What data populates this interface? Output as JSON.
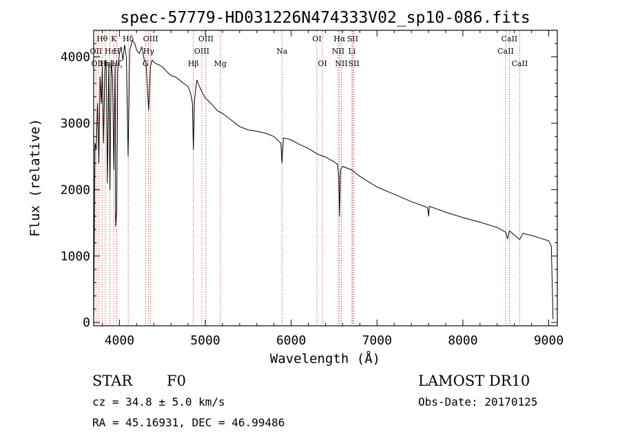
{
  "chart_data": {
    "type": "line",
    "title": "spec-57779-HD031226N474333V02_sp10-086.fits",
    "xlabel": "Wavelength (Å)",
    "ylabel": "Flux (relative)",
    "xlim": [
      3700,
      9100
    ],
    "ylim": [
      -50,
      4400
    ],
    "x_ticks": [
      4000,
      5000,
      6000,
      7000,
      8000,
      9000
    ],
    "x_tick_labels": [
      "4000",
      "5000",
      "6000",
      "7000",
      "8000",
      "9000"
    ],
    "y_ticks": [
      0,
      1000,
      2000,
      3000,
      4000
    ],
    "y_tick_labels": [
      "0",
      "1000",
      "2000",
      "3000",
      "4000"
    ],
    "grid": false,
    "series": [
      {
        "name": "",
        "x": [
          3700,
          3715,
          3730,
          3745,
          3760,
          3775,
          3790,
          3800,
          3815,
          3830,
          3845,
          3860,
          3875,
          3889,
          3905,
          3920,
          3935,
          3950,
          3955,
          3968,
          3980,
          4000,
          4020,
          4040,
          4060,
          4080,
          4101,
          4120,
          4150,
          4180,
          4200,
          4230,
          4260,
          4290,
          4310,
          4340,
          4360,
          4380,
          4420,
          4460,
          4500,
          4550,
          4600,
          4650,
          4700,
          4750,
          4800,
          4830,
          4850,
          4861,
          4875,
          4900,
          4950,
          5000,
          5050,
          5100,
          5150,
          5200,
          5300,
          5400,
          5500,
          5600,
          5700,
          5800,
          5880,
          5893,
          5910,
          6000,
          6100,
          6200,
          6300,
          6400,
          6500,
          6540,
          6555,
          6563,
          6575,
          6600,
          6700,
          6800,
          6900,
          7000,
          7200,
          7400,
          7590,
          7600,
          7610,
          7800,
          8000,
          8200,
          8400,
          8498,
          8520,
          8542,
          8570,
          8662,
          8700,
          8800,
          8900,
          9000,
          9030,
          9050
        ],
        "y": [
          50,
          2700,
          2600,
          3300,
          2400,
          3700,
          3300,
          3850,
          2700,
          3800,
          3950,
          2100,
          3900,
          2000,
          3950,
          3700,
          2300,
          3900,
          1450,
          1700,
          3800,
          4050,
          4150,
          3950,
          4180,
          4000,
          2500,
          4100,
          4250,
          4200,
          4100,
          4050,
          4150,
          3950,
          3900,
          3200,
          3850,
          3950,
          3900,
          3880,
          3850,
          3780,
          3720,
          3700,
          3650,
          3600,
          3550,
          3450,
          3300,
          2600,
          3350,
          3650,
          3500,
          3380,
          3320,
          3250,
          3180,
          3150,
          3050,
          2950,
          2900,
          2880,
          2850,
          2800,
          2700,
          2400,
          2780,
          2750,
          2680,
          2620,
          2540,
          2490,
          2420,
          2380,
          2200,
          1600,
          2300,
          2350,
          2300,
          2200,
          2120,
          2040,
          1930,
          1820,
          1730,
          1600,
          1750,
          1660,
          1580,
          1510,
          1430,
          1360,
          1260,
          1380,
          1350,
          1250,
          1340,
          1310,
          1270,
          1230,
          1150,
          50
        ]
      }
    ],
    "line_markers": [
      {
        "label": "Hθ",
        "wavelength": 3798,
        "row": 0
      },
      {
        "label": "OII",
        "wavelength": 3727,
        "row": 1
      },
      {
        "label": "OIII",
        "wavelength": 3760,
        "row": 2
      },
      {
        "label": "Hη",
        "wavelength": 3835,
        "row": 2
      },
      {
        "label": "K",
        "wavelength": 3934,
        "row": 0
      },
      {
        "label": "Hε",
        "wavelength": 3889,
        "row": 1
      },
      {
        "label": "H",
        "wavelength": 3969,
        "row": 1
      },
      {
        "label": "Hζ",
        "wavelength": 3970,
        "row": 2
      },
      {
        "label": "Hδ",
        "wavelength": 4102,
        "row": 0
      },
      {
        "label": "OIII",
        "wavelength": 4363,
        "row": 0
      },
      {
        "label": "Hγ",
        "wavelength": 4340,
        "row": 1
      },
      {
        "label": "G",
        "wavelength": 4304,
        "row": 2
      },
      {
        "label": "OIII",
        "wavelength": 5007,
        "row": 0
      },
      {
        "label": "OIII",
        "wavelength": 4959,
        "row": 1
      },
      {
        "label": "Hβ",
        "wavelength": 4861,
        "row": 2
      },
      {
        "label": "Mg",
        "wavelength": 5175,
        "row": 2
      },
      {
        "label": "Na",
        "wavelength": 5893,
        "row": 1
      },
      {
        "label": "OI",
        "wavelength": 6300,
        "row": 0
      },
      {
        "label": "OI",
        "wavelength": 6364,
        "row": 2
      },
      {
        "label": "Hα",
        "wavelength": 6563,
        "row": 0
      },
      {
        "label": "SII",
        "wavelength": 6716,
        "row": 0
      },
      {
        "label": "NII",
        "wavelength": 6548,
        "row": 1
      },
      {
        "label": "Li",
        "wavelength": 6708,
        "row": 1
      },
      {
        "label": "NII",
        "wavelength": 6584,
        "row": 2
      },
      {
        "label": "SII",
        "wavelength": 6731,
        "row": 2
      },
      {
        "label": "CaII",
        "wavelength": 8542,
        "row": 0
      },
      {
        "label": "CaII",
        "wavelength": 8498,
        "row": 1
      },
      {
        "label": "CaII",
        "wavelength": 8662,
        "row": 2
      }
    ]
  },
  "info": {
    "object_type": "STAR",
    "subclass": "F0",
    "survey": "LAMOST DR10",
    "redshift_line": "cz = 34.8 ± 5.0 km/s",
    "obs_date_line": "Obs-Date: 20170125",
    "coords_line": "RA =  45.16931, DEC =  46.99486"
  },
  "colors": {
    "spectrum": "#000000",
    "marker_line": "#c0392b",
    "axes": "#000000",
    "background": "#ffffff"
  }
}
